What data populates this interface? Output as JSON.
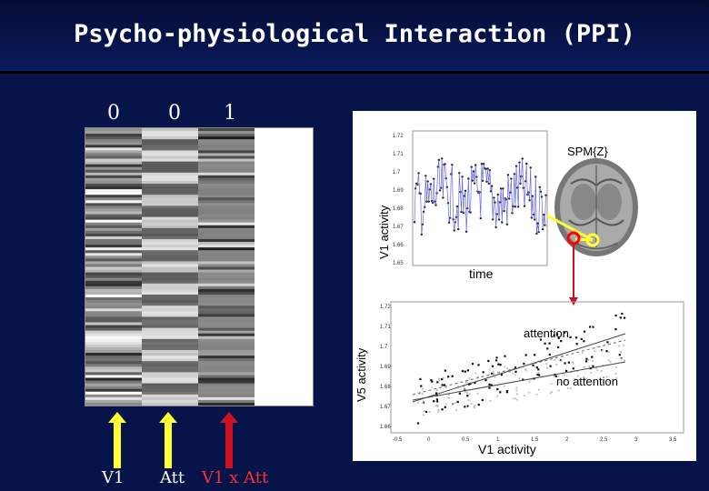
{
  "title": "Psycho-physiological Interaction (PPI)",
  "contrast_weights": [
    "0",
    "0",
    "1"
  ],
  "regressors": [
    {
      "name": "V1",
      "color": "#ffffff"
    },
    {
      "name": "Att",
      "color": "#ffffff"
    },
    {
      "name": "V1 x Att",
      "color": "#ff3030"
    }
  ],
  "colors": {
    "background": "#07144a",
    "arrow_yellow": "#ffff33",
    "arrow_red": "#cc1122",
    "highlight_red": "#ff0000"
  },
  "timeseries_panel": {
    "ylabel": "V1 activity",
    "xlabel": "time",
    "yticks": [
      "1.72",
      "1.71",
      "1.7",
      "1.69",
      "1.68",
      "1.67",
      "1.66",
      "1.65"
    ],
    "spm_label": "SPM{Z}"
  },
  "scatter_panel": {
    "ylabel": "V5 activity",
    "xlabel": "V1 activity",
    "yticks": [
      "1.72",
      "1.71",
      "1.7",
      "1.69",
      "1.68",
      "1.67",
      "1.66"
    ],
    "xticks": [
      "-0.5",
      "0",
      "0.5",
      "1",
      "1.5",
      "2",
      "2.5",
      "3",
      "3.5"
    ],
    "label_attention": "attention",
    "label_no_attention": "no attention"
  }
}
